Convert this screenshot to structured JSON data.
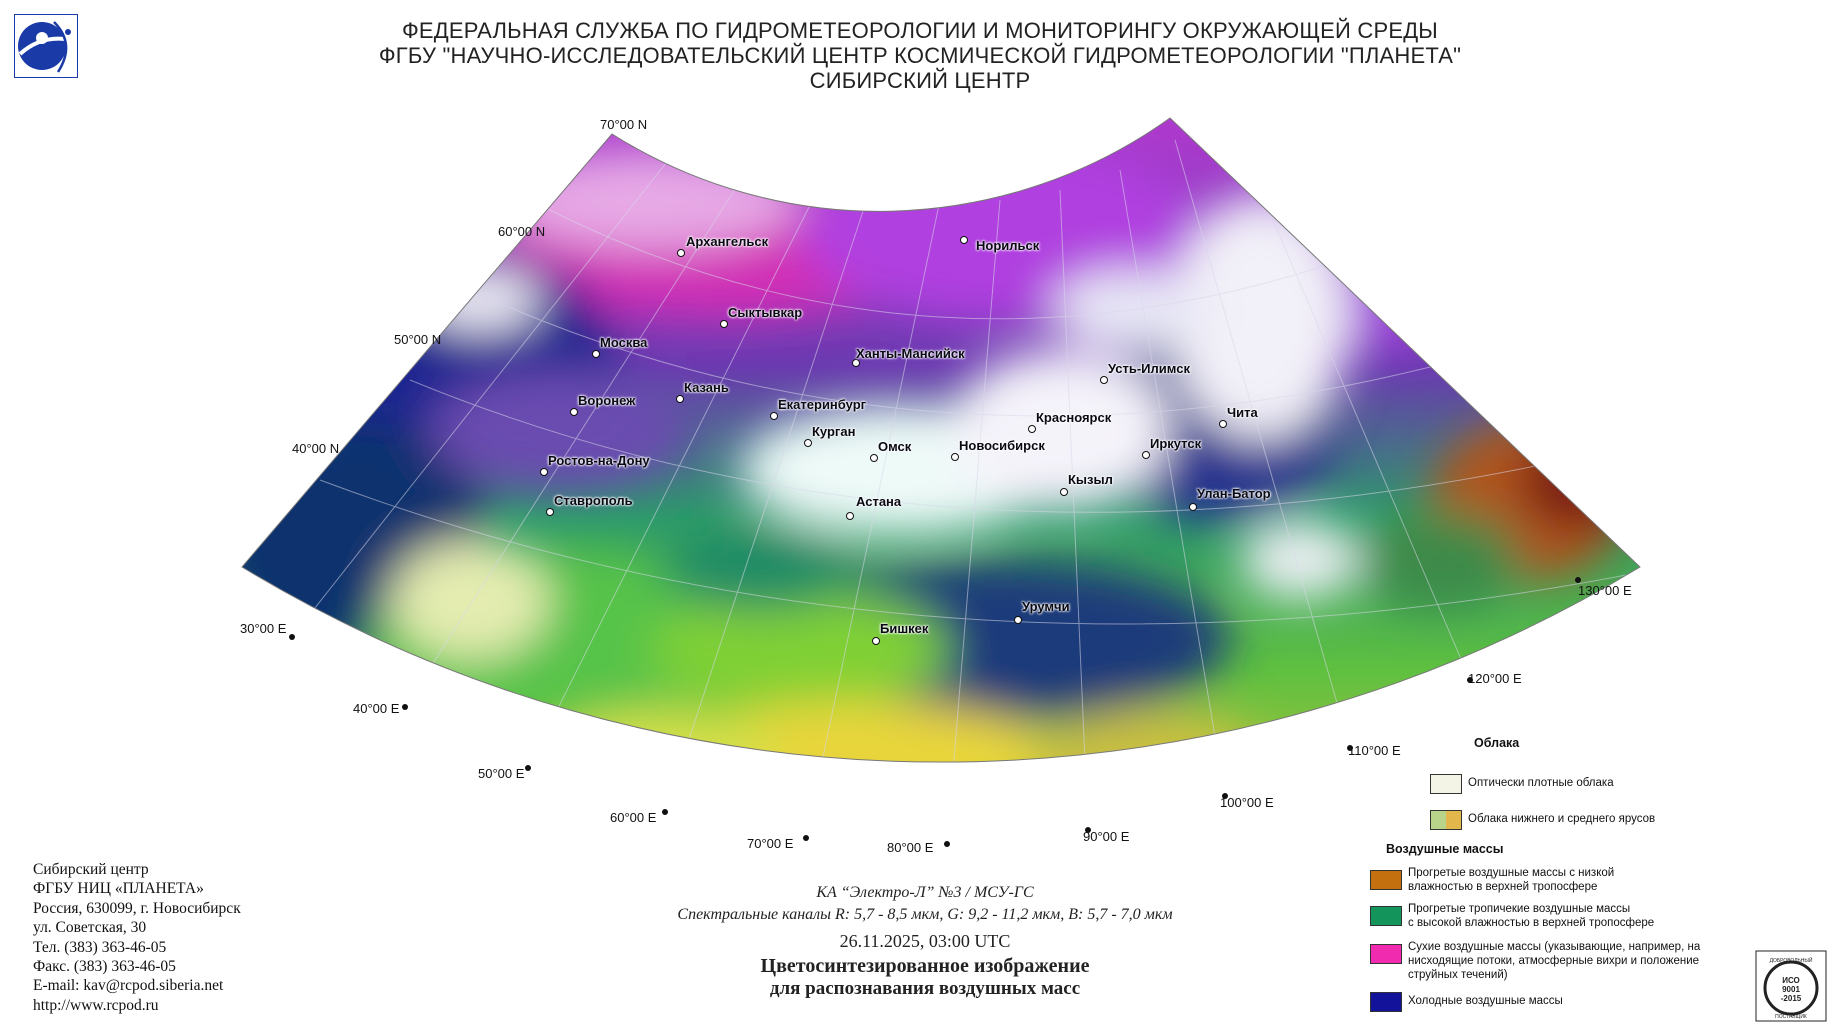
{
  "header": {
    "line1": "ФЕДЕРАЛЬНАЯ СЛУЖБА ПО ГИДРОМЕТЕОРОЛОГИИ И МОНИТОРИНГУ ОКРУЖАЮЩЕЙ СРЕДЫ",
    "line2": "ФГБУ \"НАУЧНО-ИССЛЕДОВАТЕЛЬСКИЙ ЦЕНТР КОСМИЧЕСКОЙ ГИДРОМЕТЕОРОЛОГИИ \"ПЛАНЕТА\"",
    "line3": "СИБИРСКИЙ ЦЕНТР"
  },
  "map": {
    "lat_labels": [
      "70°00 N",
      "60°00 N",
      "50°00 N",
      "40°00 N"
    ],
    "lon_labels": [
      "30°00 E",
      "40°00 E",
      "50°00 E",
      "60°00 E",
      "70°00 E",
      "80°00 E",
      "90°00 E",
      "100°00 E",
      "110°00 E",
      "120°00 E",
      "130°00 E"
    ],
    "cities": [
      "Архангельск",
      "Норильск",
      "Сыктывкар",
      "Москва",
      "Ханты-Мансийск",
      "Усть-Илимск",
      "Казань",
      "Воронеж",
      "Екатеринбург",
      "Красноярск",
      "Чита",
      "Курган",
      "Иркутск",
      "Омск",
      "Новосибирск",
      "Ростов-на-Дону",
      "Кызыл",
      "Улан-Батор",
      "Ставрополь",
      "Астана",
      "Урумчи",
      "Бишкек"
    ],
    "colors": {
      "cold_air": "#1b1f8f",
      "dry_air": "#c72fd0",
      "tropical_moist": "#19a65a",
      "warm_low_moist": "#c26a15",
      "dense_clouds": "#f4f4ea",
      "low_mid_clouds": "#d9d44a"
    }
  },
  "contacts": {
    "line1": "Сибирский центр",
    "line2": "ФГБУ НИЦ «ПЛАНЕТА»",
    "line3": "Россия, 630099, г. Новосибирск",
    "line4": "ул. Советская, 30",
    "line5": "Тел. (383) 363-46-05",
    "line6": "Факс. (383) 363-46-05",
    "line7": "E-mail: kav@rcpod.siberia.net",
    "line8": "http://www.rcpod.ru"
  },
  "caption": {
    "satellite": "КА “Электро-Л” №3 / МСУ-ГС",
    "channels": "Спектральные каналы R: 5,7 - 8,5 мкм, G: 9,2 - 11,2 мкм, B: 5,7 - 7,0 мкм",
    "datetime": "26.11.2025, 03:00 UTC",
    "title1": "Цветосинтезированное изображение",
    "title2": "для распознавания воздушных масс"
  },
  "legend": {
    "clouds_heading": "Облака",
    "clouds_items": [
      {
        "text": "Оптически плотные облака",
        "color": "#f3f3e6"
      },
      {
        "text": "Облака нижнего и среднего ярусов",
        "color": "#b8d48a",
        "color2": "#e2b64a"
      }
    ],
    "air_heading": "Воздушные массы",
    "air_items": [
      {
        "line1": "Прогретые воздушные массы с низкой",
        "line2": "влажностью в верхней тропосфере",
        "line3": "",
        "color": "#c5700f"
      },
      {
        "line1": "Прогретые тропичекие воздушные массы",
        "line2": "с высокой влажностью в верхней тропосфере",
        "line3": "",
        "color": "#12945a"
      },
      {
        "line1": "Сухие воздушные массы (указывающие, например, на",
        "line2": "нисходящие потоки, атмосферные вихри и положение",
        "line3": "струйных течений)",
        "color": "#f12bb0"
      },
      {
        "line1": "Холодные воздушные массы",
        "line2": "",
        "line3": "",
        "color": "#12129a"
      }
    ]
  },
  "iso": {
    "top_text": "ДОБРОВОЛЬНЫЙ",
    "line1": "ИСО",
    "line2": "9001",
    "line3": "-2015",
    "bottom_text": "ПОСТАВЩИК"
  }
}
